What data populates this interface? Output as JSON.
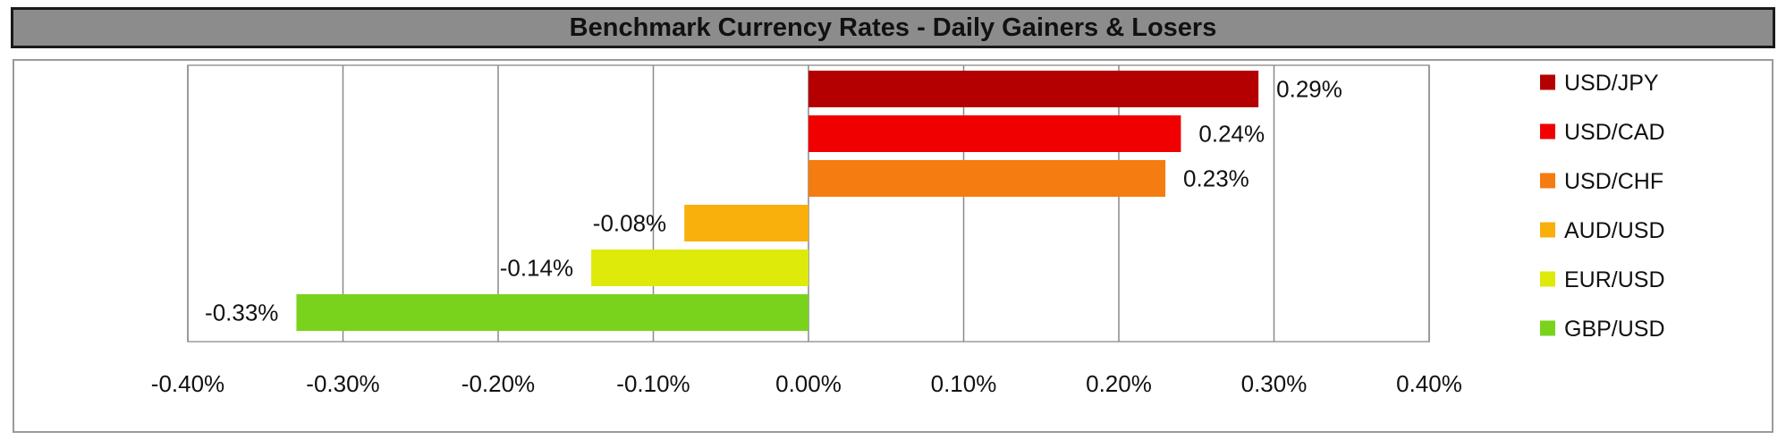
{
  "chart_data": {
    "type": "bar",
    "orientation": "horizontal",
    "title": "Benchmark Currency Rates - Daily Gainers & Losers",
    "categories": [
      "USD/JPY",
      "USD/CAD",
      "USD/CHF",
      "AUD/USD",
      "EUR/USD",
      "GBP/USD"
    ],
    "values": [
      0.29,
      0.24,
      0.23,
      -0.08,
      -0.14,
      -0.33
    ],
    "data_labels": [
      "0.29%",
      "0.24%",
      "0.23%",
      "-0.08%",
      "-0.14%",
      "-0.33%"
    ],
    "colors": [
      "#B40000",
      "#F00000",
      "#F47C10",
      "#F9AF0C",
      "#DDEA0A",
      "#79D31C"
    ],
    "xlim": [
      -0.4,
      0.4
    ],
    "x_ticks": [
      -0.4,
      -0.3,
      -0.2,
      -0.1,
      0.0,
      0.1,
      0.2,
      0.3,
      0.4
    ],
    "x_tick_labels": [
      "-0.40%",
      "-0.30%",
      "-0.20%",
      "-0.10%",
      "0.00%",
      "0.10%",
      "0.20%",
      "0.30%",
      "0.40%"
    ],
    "grid": "vertical",
    "legend": "right",
    "xlabel": "",
    "ylabel": ""
  }
}
